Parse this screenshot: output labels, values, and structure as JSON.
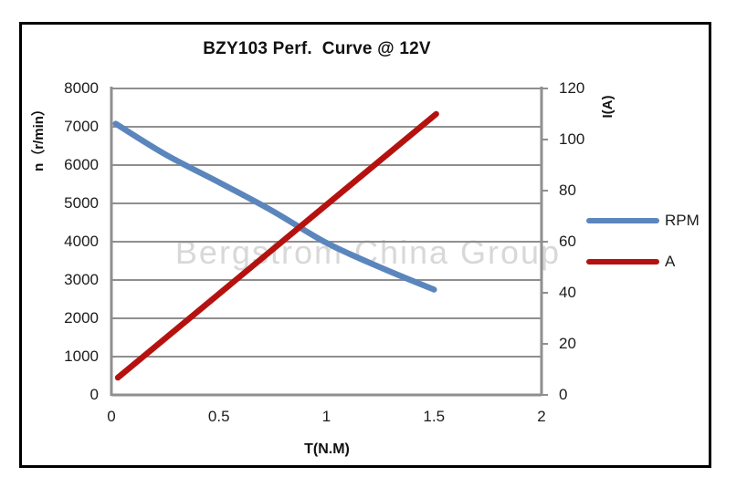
{
  "chart_data": {
    "type": "line",
    "title": "BZY103 Perf.  Curve @ 12V",
    "xlabel": "T(N.M)",
    "ylabel_left": "n（r/min）",
    "ylabel_right": "I(A)",
    "watermark": "Bergstrom China Group",
    "xlim": [
      0,
      2
    ],
    "x_ticks": [
      "0",
      "0.5",
      "1",
      "1.5",
      "2"
    ],
    "ylim_left": [
      0,
      8000
    ],
    "y_ticks_left": [
      "0",
      "1000",
      "2000",
      "3000",
      "4000",
      "5000",
      "6000",
      "7000",
      "8000"
    ],
    "ylim_right": [
      0,
      120
    ],
    "y_ticks_right": [
      "0",
      "20",
      "40",
      "60",
      "80",
      "100",
      "120"
    ],
    "grid": "horizontal-only",
    "legend_position": "right",
    "series": [
      {
        "name": "RPM",
        "axis": "left",
        "color": "#5b86bd",
        "smooth": true,
        "x": [
          0.02,
          0.25,
          0.5,
          0.75,
          1.0,
          1.25,
          1.5
        ],
        "y": [
          7080,
          6280,
          5550,
          4800,
          3970,
          3330,
          2750
        ]
      },
      {
        "name": "A",
        "axis": "right",
        "color": "#b5120f",
        "smooth": false,
        "x": [
          0.03,
          1.51
        ],
        "y": [
          6.8,
          110
        ]
      }
    ],
    "colors": {
      "grid": "#8f8f8f",
      "axis": "#8f8f8f",
      "tick_text": "#1c1c1c",
      "title_text": "#111111",
      "watermark": "#d8d8d8",
      "frame_border": "#000000",
      "background": "#ffffff"
    }
  }
}
